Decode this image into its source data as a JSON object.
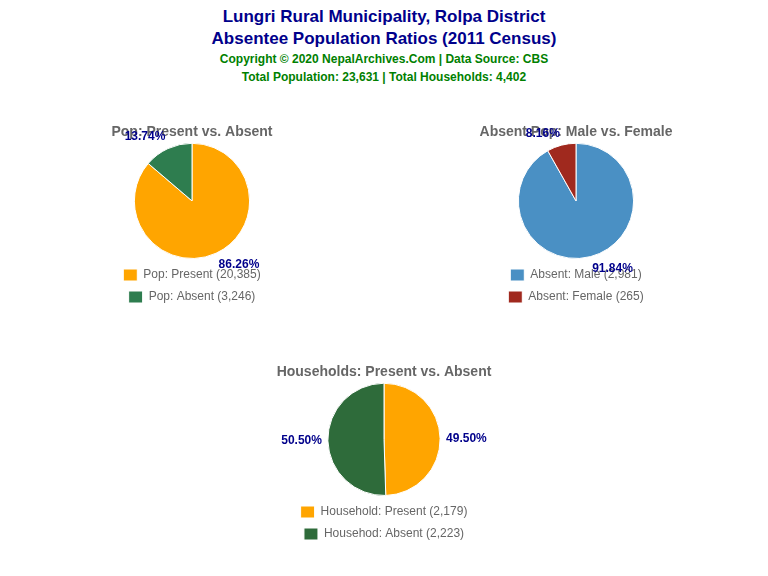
{
  "title": "Lungri Rural Municipality, Rolpa District",
  "subtitle": "Absentee Population Ratios (2011 Census)",
  "annotations": [
    "Copyright © 2020 NepalArchives.Com | Data Source: CBS",
    "Total Population: 23,631 | Total Households: 4,402"
  ],
  "chart_data": [
    {
      "type": "pie",
      "title": "Pop: Present vs. Absent",
      "categories": [
        "Pop: Present (20,385)",
        "Pop: Absent (3,246)"
      ],
      "values": [
        86.26,
        13.74
      ],
      "value_labels": [
        "86.26%",
        "13.74%"
      ],
      "colors": [
        "#FFA500",
        "#2E7D4F"
      ],
      "data_labels": true,
      "legend": "bottom"
    },
    {
      "type": "pie",
      "title": "Absent Pop: Male vs. Female",
      "categories": [
        "Absent: Male (2,981)",
        "Absent: Female (265)"
      ],
      "values": [
        91.84,
        8.16
      ],
      "value_labels": [
        "91.84%",
        "8.16%"
      ],
      "colors": [
        "#4A90C4",
        "#A0291E"
      ],
      "data_labels": true,
      "legend": "bottom"
    },
    {
      "type": "pie",
      "title": "Households: Present vs. Absent",
      "categories": [
        "Household: Present (2,179)",
        "Househod: Absent (2,223)"
      ],
      "values": [
        49.5,
        50.5
      ],
      "value_labels": [
        "49.50%",
        "50.50%"
      ],
      "colors": [
        "#FFA500",
        "#2E6B3A"
      ],
      "data_labels": true,
      "legend": "bottom"
    }
  ]
}
